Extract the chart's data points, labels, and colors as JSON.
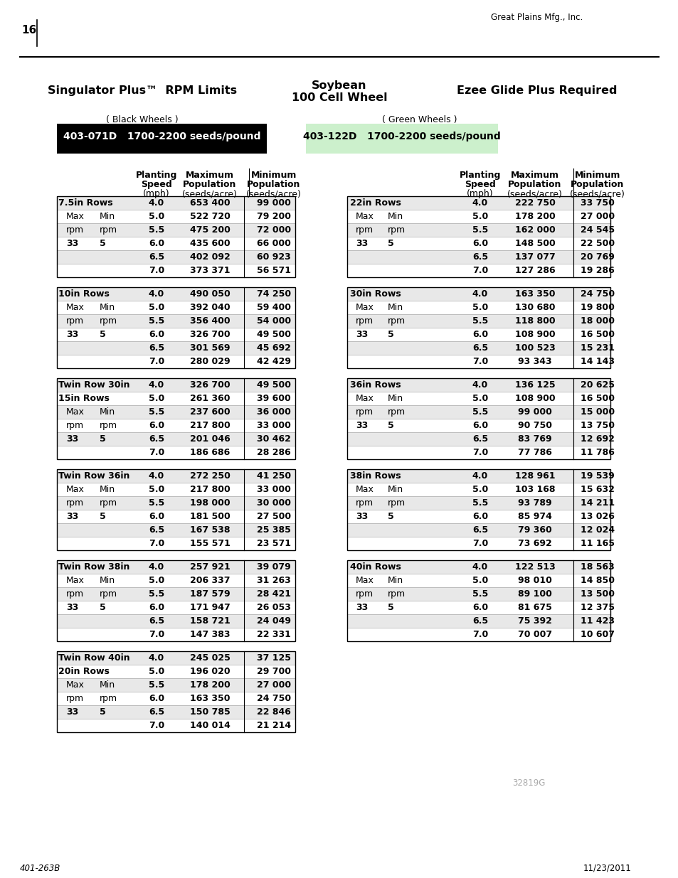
{
  "page_number": "16",
  "company": "Great Plains Mfg., Inc.",
  "footer_left": "401-263B",
  "footer_right": "11/23/2011",
  "watermark": "32819G",
  "title_left": "Singulator Plus™  RPM Limits",
  "title_center_line1": "Soybean",
  "title_center_line2": "100 Cell Wheel",
  "title_right": "Ezee Glide Plus Required",
  "subtitle_left": "( Black Wheels )",
  "subtitle_right": "( Green Wheels )",
  "badge_left_text": "403-071D   1700-2200 seeds/pound",
  "badge_left_bg": "#000000",
  "badge_left_fg": "#ffffff",
  "badge_right_text": "403-122D   1700-2200 seeds/pound",
  "badge_right_bg": "#ccf0cc",
  "badge_right_fg": "#000000",
  "left_tables": [
    {
      "section_lines": [
        "7.5in Rows"
      ],
      "speeds": [
        "4.0",
        "5.0",
        "5.5",
        "6.0",
        "6.5",
        "7.0"
      ],
      "max_pop": [
        "653 400",
        "522 720",
        "475 200",
        "435 600",
        "402 092",
        "373 371"
      ],
      "min_pop": [
        "99 000",
        "79 200",
        "72 000",
        "66 000",
        "60 923",
        "56 571"
      ]
    },
    {
      "section_lines": [
        "10in Rows"
      ],
      "speeds": [
        "4.0",
        "5.0",
        "5.5",
        "6.0",
        "6.5",
        "7.0"
      ],
      "max_pop": [
        "490 050",
        "392 040",
        "356 400",
        "326 700",
        "301 569",
        "280 029"
      ],
      "min_pop": [
        "74 250",
        "59 400",
        "54 000",
        "49 500",
        "45 692",
        "42 429"
      ]
    },
    {
      "section_lines": [
        "Twin Row 30in",
        "15in Rows"
      ],
      "speeds": [
        "4.0",
        "5.0",
        "5.5",
        "6.0",
        "6.5",
        "7.0"
      ],
      "max_pop": [
        "326 700",
        "261 360",
        "237 600",
        "217 800",
        "201 046",
        "186 686"
      ],
      "min_pop": [
        "49 500",
        "39 600",
        "36 000",
        "33 000",
        "30 462",
        "28 286"
      ]
    },
    {
      "section_lines": [
        "Twin Row 36in"
      ],
      "speeds": [
        "4.0",
        "5.0",
        "5.5",
        "6.0",
        "6.5",
        "7.0"
      ],
      "max_pop": [
        "272 250",
        "217 800",
        "198 000",
        "181 500",
        "167 538",
        "155 571"
      ],
      "min_pop": [
        "41 250",
        "33 000",
        "30 000",
        "27 500",
        "25 385",
        "23 571"
      ]
    },
    {
      "section_lines": [
        "Twin Row 38in"
      ],
      "speeds": [
        "4.0",
        "5.0",
        "5.5",
        "6.0",
        "6.5",
        "7.0"
      ],
      "max_pop": [
        "257 921",
        "206 337",
        "187 579",
        "171 947",
        "158 721",
        "147 383"
      ],
      "min_pop": [
        "39 079",
        "31 263",
        "28 421",
        "26 053",
        "24 049",
        "22 331"
      ]
    },
    {
      "section_lines": [
        "Twin Row 40in",
        "20in Rows"
      ],
      "speeds": [
        "4.0",
        "5.0",
        "5.5",
        "6.0",
        "6.5",
        "7.0"
      ],
      "max_pop": [
        "245 025",
        "196 020",
        "178 200",
        "163 350",
        "150 785",
        "140 014"
      ],
      "min_pop": [
        "37 125",
        "29 700",
        "27 000",
        "24 750",
        "22 846",
        "21 214"
      ]
    }
  ],
  "right_tables": [
    {
      "section_lines": [
        "22in Rows"
      ],
      "speeds": [
        "4.0",
        "5.0",
        "5.5",
        "6.0",
        "6.5",
        "7.0"
      ],
      "max_pop": [
        "222 750",
        "178 200",
        "162 000",
        "148 500",
        "137 077",
        "127 286"
      ],
      "min_pop": [
        "33 750",
        "27 000",
        "24 545",
        "22 500",
        "20 769",
        "19 286"
      ]
    },
    {
      "section_lines": [
        "30in Rows"
      ],
      "speeds": [
        "4.0",
        "5.0",
        "5.5",
        "6.0",
        "6.5",
        "7.0"
      ],
      "max_pop": [
        "163 350",
        "130 680",
        "118 800",
        "108 900",
        "100 523",
        "93 343"
      ],
      "min_pop": [
        "24 750",
        "19 800",
        "18 000",
        "16 500",
        "15 231",
        "14 143"
      ]
    },
    {
      "section_lines": [
        "36in Rows"
      ],
      "speeds": [
        "4.0",
        "5.0",
        "5.5",
        "6.0",
        "6.5",
        "7.0"
      ],
      "max_pop": [
        "136 125",
        "108 900",
        "99 000",
        "90 750",
        "83 769",
        "77 786"
      ],
      "min_pop": [
        "20 625",
        "16 500",
        "15 000",
        "13 750",
        "12 692",
        "11 786"
      ]
    },
    {
      "section_lines": [
        "38in Rows"
      ],
      "speeds": [
        "4.0",
        "5.0",
        "5.5",
        "6.0",
        "6.5",
        "7.0"
      ],
      "max_pop": [
        "128 961",
        "103 168",
        "93 789",
        "85 974",
        "79 360",
        "73 692"
      ],
      "min_pop": [
        "19 539",
        "15 632",
        "14 211",
        "13 026",
        "12 024",
        "11 165"
      ]
    },
    {
      "section_lines": [
        "40in Rows"
      ],
      "speeds": [
        "4.0",
        "5.0",
        "5.5",
        "6.0",
        "6.5",
        "7.0"
      ],
      "max_pop": [
        "122 513",
        "98 010",
        "89 100",
        "81 675",
        "75 392",
        "70 007"
      ],
      "min_pop": [
        "18 563",
        "14 850",
        "13 500",
        "12 375",
        "11 423",
        "10 607"
      ]
    }
  ]
}
